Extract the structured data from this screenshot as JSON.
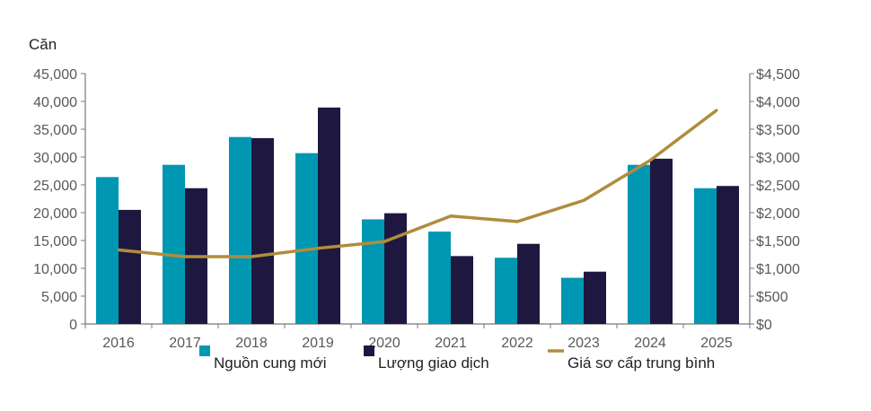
{
  "chart_data": {
    "type": "bar+line",
    "ylabel_left": "Căn",
    "categories": [
      "2016",
      "2017",
      "2018",
      "2019",
      "2020",
      "2021",
      "2022",
      "2023",
      "2024",
      "2025"
    ],
    "ylim_left": [
      0,
      45000
    ],
    "yticks_left": [
      "0",
      "5,000",
      "10,000",
      "15,000",
      "20,000",
      "25,000",
      "30,000",
      "35,000",
      "40,000",
      "45,000"
    ],
    "ylim_right": [
      0,
      4500
    ],
    "yticks_right": [
      "$0",
      "$500",
      "$1,000",
      "$1,500",
      "$2,000",
      "$2,500",
      "$3,000",
      "$3,500",
      "$4,000",
      "$4,500"
    ],
    "grid": false,
    "legend_position": "bottom",
    "series": [
      {
        "name": "Nguồn cung mới",
        "type": "bar",
        "axis": "left",
        "color": "#0097B2",
        "values": [
          26400,
          28600,
          33600,
          30700,
          18800,
          16600,
          11900,
          8300,
          28600,
          24400
        ]
      },
      {
        "name": "Lượng giao dịch",
        "type": "bar",
        "axis": "left",
        "color": "#1E1840",
        "values": [
          20500,
          24400,
          33400,
          38900,
          19900,
          12200,
          14400,
          9400,
          29700,
          24800
        ]
      },
      {
        "name": "Giá sơ cấp trung bình",
        "type": "line",
        "axis": "right",
        "color": "#B08D3C",
        "values": [
          1330,
          1210,
          1210,
          1360,
          1480,
          1940,
          1840,
          2220,
          2940,
          3840
        ]
      }
    ]
  }
}
